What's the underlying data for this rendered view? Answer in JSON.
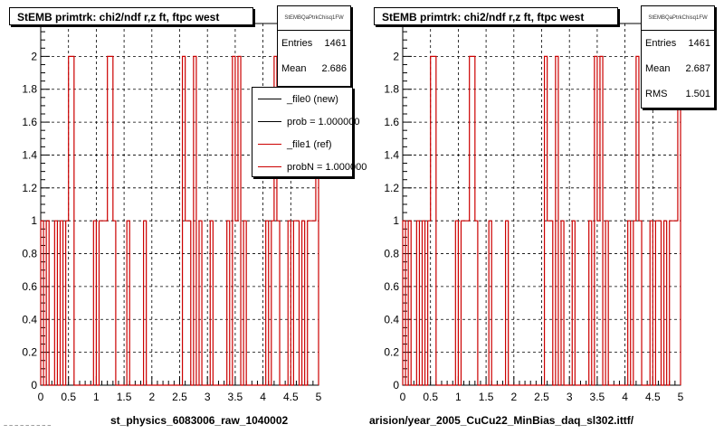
{
  "chart_data": [
    {
      "type": "histogram",
      "title": "StEMB primtrk: chi2/ndf r,z ft, ftpc west",
      "xlim": [
        0,
        5
      ],
      "ylim": [
        0,
        2.2
      ],
      "x_ticks": [
        "0",
        "0.5",
        "1",
        "1.5",
        "2",
        "2.5",
        "3",
        "3.5",
        "4",
        "4.5",
        "5"
      ],
      "y_ticks": [
        "0",
        "0.2",
        "0.4",
        "0.6",
        "0.8",
        "1",
        "1.2",
        "1.4",
        "1.6",
        "1.8",
        "2"
      ],
      "grid": true,
      "series": [
        {
          "color": "#cc0000",
          "bins": [
            [
              0.0,
              0.05,
              1
            ],
            [
              0.05,
              0.1,
              0
            ],
            [
              0.1,
              0.15,
              1
            ],
            [
              0.15,
              0.25,
              0
            ],
            [
              0.25,
              0.3,
              1
            ],
            [
              0.3,
              0.35,
              0
            ],
            [
              0.35,
              0.4,
              1
            ],
            [
              0.4,
              0.45,
              0
            ],
            [
              0.45,
              0.5,
              1
            ],
            [
              0.5,
              0.6,
              2
            ],
            [
              0.6,
              0.95,
              0
            ],
            [
              0.95,
              1.0,
              1
            ],
            [
              1.0,
              1.05,
              0
            ],
            [
              1.05,
              1.2,
              1
            ],
            [
              1.2,
              1.3,
              2
            ],
            [
              1.3,
              1.35,
              1
            ],
            [
              1.35,
              1.55,
              0
            ],
            [
              1.55,
              1.6,
              1
            ],
            [
              1.6,
              1.85,
              0
            ],
            [
              1.85,
              1.9,
              1
            ],
            [
              1.9,
              2.55,
              0
            ],
            [
              2.55,
              2.6,
              2
            ],
            [
              2.6,
              2.7,
              1
            ],
            [
              2.7,
              2.75,
              0
            ],
            [
              2.75,
              2.8,
              2
            ],
            [
              2.8,
              2.85,
              0
            ],
            [
              2.85,
              2.9,
              1
            ],
            [
              2.9,
              3.05,
              0
            ],
            [
              3.05,
              3.1,
              1
            ],
            [
              3.1,
              3.35,
              0
            ],
            [
              3.35,
              3.4,
              1
            ],
            [
              3.4,
              3.45,
              0
            ],
            [
              3.45,
              3.5,
              2
            ],
            [
              3.5,
              3.55,
              1
            ],
            [
              3.55,
              3.6,
              2
            ],
            [
              3.6,
              3.65,
              0
            ],
            [
              3.65,
              3.7,
              1
            ],
            [
              3.7,
              4.05,
              0
            ],
            [
              4.05,
              4.1,
              1
            ],
            [
              4.1,
              4.15,
              0
            ],
            [
              4.15,
              4.2,
              1
            ],
            [
              4.2,
              4.25,
              2
            ],
            [
              4.25,
              4.3,
              1
            ],
            [
              4.3,
              4.45,
              0
            ],
            [
              4.45,
              4.5,
              1
            ],
            [
              4.5,
              4.55,
              0
            ],
            [
              4.55,
              4.65,
              1
            ],
            [
              4.65,
              4.7,
              0
            ],
            [
              4.7,
              4.75,
              1
            ],
            [
              4.75,
              4.8,
              0
            ],
            [
              4.8,
              4.95,
              1
            ],
            [
              4.95,
              5.0,
              2
            ]
          ]
        }
      ],
      "stats": {
        "name": "StEMBQaPtrkChisq1FW",
        "entries": "1461",
        "mean": "2.686"
      },
      "legend": [
        {
          "label": "_file0 (new)",
          "color": "#000000"
        },
        {
          "label": "prob = 1.000000",
          "color": "#000000"
        },
        {
          "label": "_file1 (ref)",
          "color": "#cc0000"
        },
        {
          "label": "probN = 1.000000",
          "color": "#cc0000"
        }
      ],
      "bottom_label": "st_physics_6083006_raw_1040002"
    },
    {
      "type": "histogram",
      "title": "StEMB primtrk: chi2/ndf r,z ft, ftpc west",
      "xlim": [
        0,
        5
      ],
      "ylim": [
        0,
        2.2
      ],
      "x_ticks": [
        "0",
        "0.5",
        "1",
        "1.5",
        "2",
        "2.5",
        "3",
        "3.5",
        "4",
        "4.5",
        "5"
      ],
      "y_ticks": [
        "0",
        "0.2",
        "0.4",
        "0.6",
        "0.8",
        "1",
        "1.2",
        "1.4",
        "1.6",
        "1.8",
        "2"
      ],
      "grid": true,
      "series": [
        {
          "color": "#cc0000",
          "bins": [
            [
              0.0,
              0.05,
              1
            ],
            [
              0.05,
              0.1,
              0
            ],
            [
              0.1,
              0.15,
              1
            ],
            [
              0.15,
              0.25,
              0
            ],
            [
              0.25,
              0.3,
              1
            ],
            [
              0.3,
              0.35,
              0
            ],
            [
              0.35,
              0.4,
              1
            ],
            [
              0.4,
              0.45,
              0
            ],
            [
              0.45,
              0.5,
              1
            ],
            [
              0.5,
              0.6,
              2
            ],
            [
              0.6,
              0.95,
              0
            ],
            [
              0.95,
              1.0,
              1
            ],
            [
              1.0,
              1.05,
              0
            ],
            [
              1.05,
              1.2,
              1
            ],
            [
              1.2,
              1.3,
              2
            ],
            [
              1.3,
              1.35,
              1
            ],
            [
              1.35,
              1.55,
              0
            ],
            [
              1.55,
              1.6,
              1
            ],
            [
              1.6,
              1.85,
              0
            ],
            [
              1.85,
              1.9,
              1
            ],
            [
              1.9,
              2.55,
              0
            ],
            [
              2.55,
              2.6,
              2
            ],
            [
              2.6,
              2.7,
              1
            ],
            [
              2.7,
              2.75,
              0
            ],
            [
              2.75,
              2.8,
              2
            ],
            [
              2.8,
              2.85,
              0
            ],
            [
              2.85,
              2.9,
              1
            ],
            [
              2.9,
              3.05,
              0
            ],
            [
              3.05,
              3.1,
              1
            ],
            [
              3.1,
              3.35,
              0
            ],
            [
              3.35,
              3.4,
              1
            ],
            [
              3.4,
              3.45,
              0
            ],
            [
              3.45,
              3.5,
              2
            ],
            [
              3.5,
              3.55,
              1
            ],
            [
              3.55,
              3.6,
              2
            ],
            [
              3.6,
              3.65,
              0
            ],
            [
              3.65,
              3.7,
              1
            ],
            [
              3.7,
              4.05,
              0
            ],
            [
              4.05,
              4.1,
              1
            ],
            [
              4.1,
              4.15,
              0
            ],
            [
              4.15,
              4.2,
              1
            ],
            [
              4.2,
              4.25,
              2
            ],
            [
              4.25,
              4.3,
              1
            ],
            [
              4.3,
              4.45,
              0
            ],
            [
              4.45,
              4.5,
              1
            ],
            [
              4.5,
              4.55,
              0
            ],
            [
              4.55,
              4.65,
              1
            ],
            [
              4.65,
              4.7,
              0
            ],
            [
              4.7,
              4.75,
              1
            ],
            [
              4.75,
              4.8,
              0
            ],
            [
              4.8,
              4.95,
              1
            ],
            [
              4.95,
              5.0,
              2
            ]
          ]
        }
      ],
      "stats": {
        "name": "StEMBQaPtrkChisq1FW",
        "entries": "1461",
        "mean": "2.687",
        "rms": "1.501"
      },
      "bottom_label": "arision/year_2005_CuCu22_MinBias_daq_sl302.ittf/"
    }
  ],
  "labels": {
    "entries": "Entries",
    "mean": "Mean",
    "rms": "RMS"
  },
  "corner_text": "~ ~ ~ ~ ~ ~ ~ ~ ~"
}
